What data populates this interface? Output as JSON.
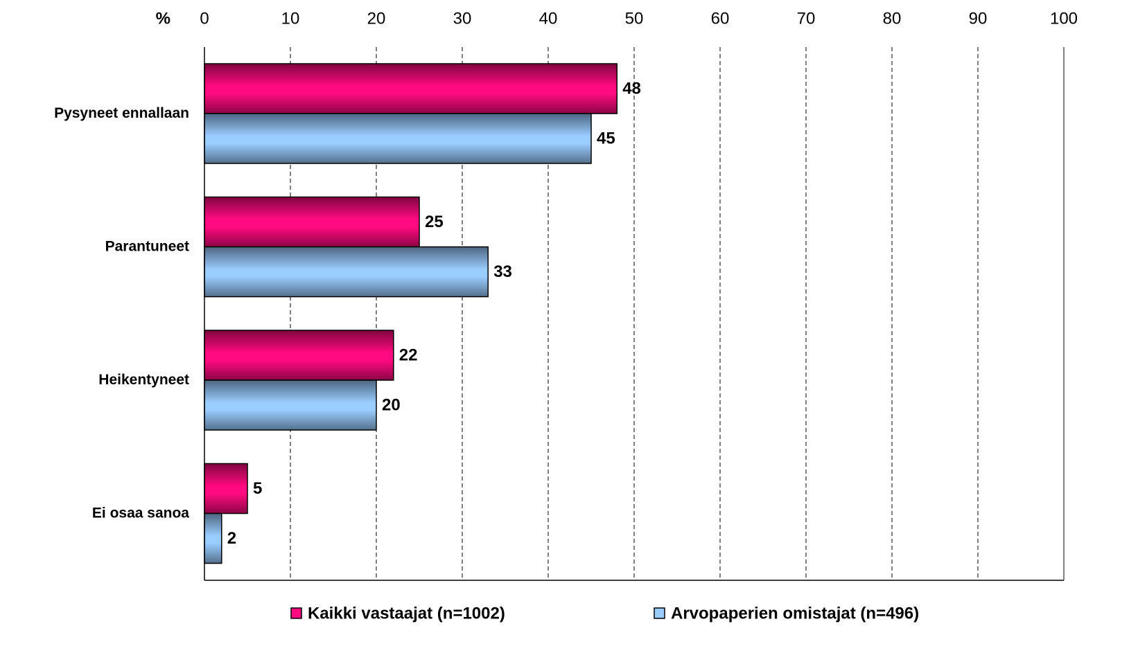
{
  "chart_data": {
    "type": "barh",
    "xlabel": "%",
    "categories": [
      "Pysyneet ennallaan",
      "Parantuneet",
      "Heikentyneet",
      "Ei osaa sanoa"
    ],
    "series": [
      {
        "name": "Kaikki vastaajat (n=1002)",
        "color": "#ff0a80",
        "values": [
          48,
          25,
          22,
          5
        ]
      },
      {
        "name": "Arvopaperien omistajat (n=496)",
        "color": "#99ccff",
        "values": [
          45,
          33,
          20,
          2
        ]
      }
    ],
    "xlim": [
      0,
      100
    ],
    "xticks": [
      0,
      10,
      20,
      30,
      40,
      50,
      60,
      70,
      80,
      90,
      100
    ],
    "grid": true,
    "legend": "bottom"
  }
}
